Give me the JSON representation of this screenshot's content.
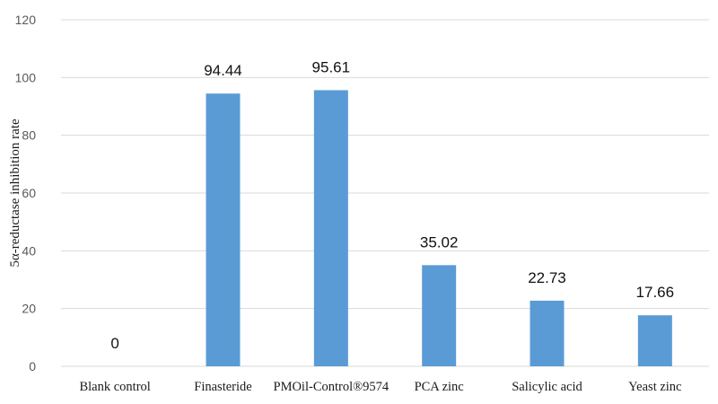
{
  "chart_data": {
    "type": "bar",
    "title": "",
    "xlabel": "",
    "ylabel": "5α-reductase inhibition rate",
    "categories": [
      "Blank control",
      "Finasteride",
      "PMOil-Control®9574",
      "PCA zinc",
      "Salicylic acid",
      "Yeast zinc"
    ],
    "values": [
      0,
      94.44,
      95.61,
      35.02,
      22.73,
      17.66
    ],
    "value_labels": [
      "0",
      "94.44",
      "95.61",
      "35.02",
      "22.73",
      "17.66"
    ],
    "ylim": [
      0,
      120
    ],
    "yticks": [
      0,
      20,
      40,
      60,
      80,
      100,
      120
    ],
    "grid": true,
    "legend": "none",
    "bar_color": "#5B9BD5",
    "grid_color": "#D9D9D9"
  }
}
